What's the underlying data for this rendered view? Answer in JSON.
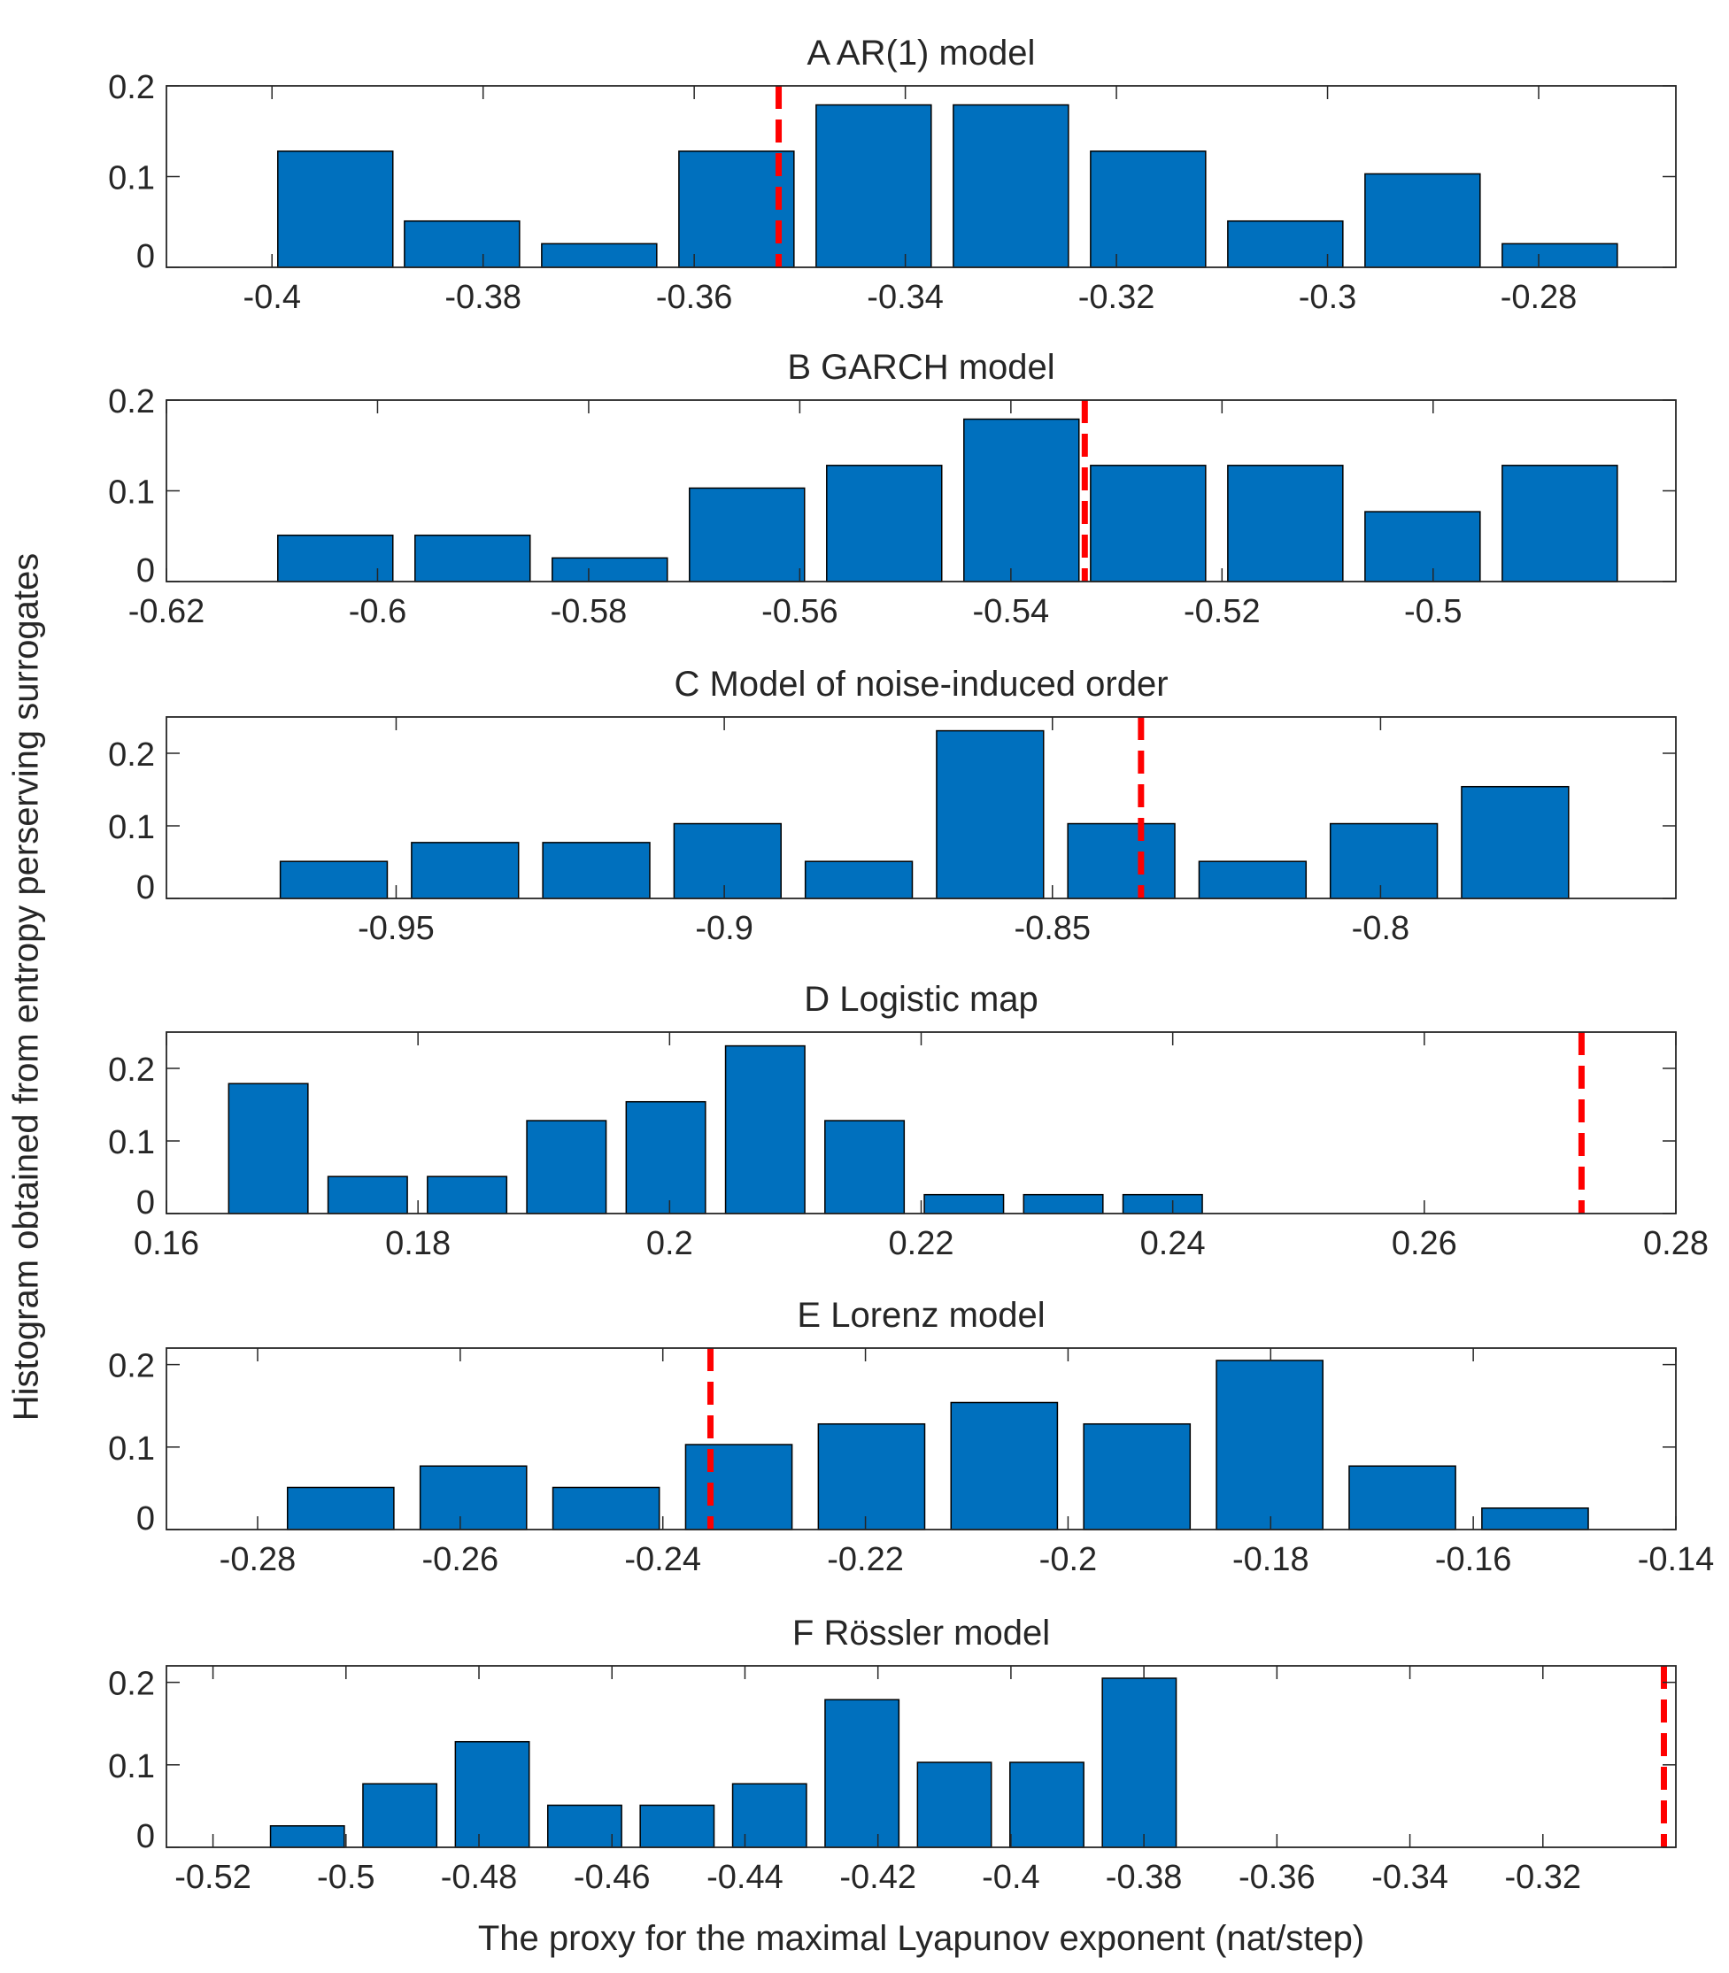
{
  "figure": {
    "ylabel": "Histogram obtained from entropy perserving surrogates",
    "xlabel": "The proxy for the maximal Lyapunov exponent (nat/step)"
  },
  "colors": {
    "bar": "#0070BE",
    "edge": "#000000",
    "line": "#FF0000",
    "text": "#262626",
    "axis": "#262626"
  },
  "chart_data": [
    {
      "type": "bar",
      "title": "A AR(1) model",
      "xlim": [
        -0.41,
        -0.267
      ],
      "ylim": [
        0,
        0.2
      ],
      "yticks": [
        0,
        0.1,
        0.2
      ],
      "ytick_labels": [
        "0",
        "0.1",
        "0.2"
      ],
      "xticks": [
        -0.4,
        -0.38,
        -0.36,
        -0.34,
        -0.32,
        -0.3,
        -0.28
      ],
      "xtick_labels": [
        "-0.4",
        "-0.38",
        "-0.36",
        "-0.34",
        "-0.32",
        "-0.3",
        "-0.28"
      ],
      "bar_width": 0.0109,
      "bars": [
        {
          "x": -0.394,
          "value": 0.128
        },
        {
          "x": -0.382,
          "value": 0.051
        },
        {
          "x": -0.369,
          "value": 0.026
        },
        {
          "x": -0.356,
          "value": 0.128
        },
        {
          "x": -0.343,
          "value": 0.179
        },
        {
          "x": -0.33,
          "value": 0.179
        },
        {
          "x": -0.317,
          "value": 0.128
        },
        {
          "x": -0.304,
          "value": 0.051
        },
        {
          "x": -0.291,
          "value": 0.103
        },
        {
          "x": -0.278,
          "value": 0.026
        }
      ],
      "reference_x": -0.352
    },
    {
      "type": "bar",
      "title": "B GARCH model",
      "xlim": [
        -0.62,
        -0.477
      ],
      "ylim": [
        0,
        0.2
      ],
      "yticks": [
        0,
        0.1,
        0.2
      ],
      "ytick_labels": [
        "0",
        "0.1",
        "0.2"
      ],
      "xticks": [
        -0.62,
        -0.6,
        -0.58,
        -0.56,
        -0.54,
        -0.52,
        -0.5
      ],
      "xtick_labels": [
        "-0.62",
        "-0.6",
        "-0.58",
        "-0.56",
        "-0.54",
        "-0.52",
        "-0.5"
      ],
      "bar_width": 0.0109,
      "bars": [
        {
          "x": -0.604,
          "value": 0.051
        },
        {
          "x": -0.591,
          "value": 0.051
        },
        {
          "x": -0.578,
          "value": 0.026
        },
        {
          "x": -0.565,
          "value": 0.103
        },
        {
          "x": -0.552,
          "value": 0.128
        },
        {
          "x": -0.539,
          "value": 0.179
        },
        {
          "x": -0.527,
          "value": 0.128
        },
        {
          "x": -0.514,
          "value": 0.128
        },
        {
          "x": -0.501,
          "value": 0.077
        },
        {
          "x": -0.488,
          "value": 0.128
        }
      ],
      "reference_x": -0.533
    },
    {
      "type": "bar",
      "title": "C Model of noise-induced order",
      "xlim": [
        -0.985,
        -0.755
      ],
      "ylim": [
        0,
        0.25
      ],
      "yticks": [
        0,
        0.1,
        0.2
      ],
      "ytick_labels": [
        "0",
        "0.1",
        "0.2"
      ],
      "xticks": [
        -0.95,
        -0.9,
        -0.85,
        -0.8
      ],
      "xtick_labels": [
        "-0.95",
        "-0.9",
        "-0.85",
        "-0.8"
      ],
      "bar_width": 0.0163,
      "bars": [
        {
          "x": -0.9595,
          "value": 0.051
        },
        {
          "x": -0.9395,
          "value": 0.077
        },
        {
          "x": -0.9195,
          "value": 0.077
        },
        {
          "x": -0.8995,
          "value": 0.103
        },
        {
          "x": -0.8795,
          "value": 0.051
        },
        {
          "x": -0.8595,
          "value": 0.231
        },
        {
          "x": -0.8395,
          "value": 0.103
        },
        {
          "x": -0.8195,
          "value": 0.051
        },
        {
          "x": -0.7995,
          "value": 0.103
        },
        {
          "x": -0.7795,
          "value": 0.154
        }
      ],
      "reference_x": -0.8365
    },
    {
      "type": "bar",
      "title": "D Logistic map",
      "xlim": [
        0.16,
        0.28
      ],
      "ylim": [
        0,
        0.25
      ],
      "yticks": [
        0,
        0.1,
        0.2
      ],
      "ytick_labels": [
        "0",
        "0.1",
        "0.2"
      ],
      "xticks": [
        0.16,
        0.18,
        0.2,
        0.22,
        0.24,
        0.26,
        0.28
      ],
      "xtick_labels": [
        "0.16",
        "0.18",
        "0.2",
        "0.22",
        "0.24",
        "0.26",
        "0.28"
      ],
      "bar_width": 0.0063,
      "bars": [
        {
          "x": 0.1681,
          "value": 0.179
        },
        {
          "x": 0.176,
          "value": 0.051
        },
        {
          "x": 0.1839,
          "value": 0.051
        },
        {
          "x": 0.1918,
          "value": 0.128
        },
        {
          "x": 0.1997,
          "value": 0.154
        },
        {
          "x": 0.2076,
          "value": 0.231
        },
        {
          "x": 0.2155,
          "value": 0.128
        },
        {
          "x": 0.2234,
          "value": 0.026
        },
        {
          "x": 0.2313,
          "value": 0.026
        },
        {
          "x": 0.2392,
          "value": 0.026
        }
      ],
      "reference_x": 0.2725
    },
    {
      "type": "bar",
      "title": "E Lorenz model",
      "xlim": [
        -0.289,
        -0.14
      ],
      "ylim": [
        0,
        0.22
      ],
      "yticks": [
        0,
        0.1,
        0.2
      ],
      "ytick_labels": [
        "0",
        "0.1",
        "0.2"
      ],
      "xticks": [
        -0.28,
        -0.26,
        -0.24,
        -0.22,
        -0.2,
        -0.18,
        -0.16,
        -0.14
      ],
      "xtick_labels": [
        "-0.28",
        "-0.26",
        "-0.24",
        "-0.22",
        "-0.2",
        "-0.18",
        "-0.16",
        "-0.14"
      ],
      "bar_width": 0.0105,
      "bars": [
        {
          "x": -0.2718,
          "value": 0.051
        },
        {
          "x": -0.2587,
          "value": 0.077
        },
        {
          "x": -0.2456,
          "value": 0.051
        },
        {
          "x": -0.2325,
          "value": 0.103
        },
        {
          "x": -0.2194,
          "value": 0.128
        },
        {
          "x": -0.2063,
          "value": 0.154
        },
        {
          "x": -0.1932,
          "value": 0.128
        },
        {
          "x": -0.1801,
          "value": 0.205
        },
        {
          "x": -0.167,
          "value": 0.077
        },
        {
          "x": -0.1539,
          "value": 0.026
        }
      ],
      "reference_x": -0.2353
    },
    {
      "type": "bar",
      "title": "F Rössler model",
      "xlim": [
        -0.527,
        -0.3
      ],
      "ylim": [
        0,
        0.22
      ],
      "yticks": [
        0,
        0.1,
        0.2
      ],
      "ytick_labels": [
        "0",
        "0.1",
        "0.2"
      ],
      "xticks": [
        -0.52,
        -0.5,
        -0.48,
        -0.46,
        -0.44,
        -0.42,
        -0.4,
        -0.38,
        -0.36,
        -0.34,
        -0.32
      ],
      "xtick_labels": [
        "-0.52",
        "-0.5",
        "-0.48",
        "-0.46",
        "-0.44",
        "-0.42",
        "-0.4",
        "-0.38",
        "-0.36",
        "-0.34",
        "-0.32"
      ],
      "bar_width": 0.0111,
      "bars": [
        {
          "x": -0.5058,
          "value": 0.026
        },
        {
          "x": -0.4919,
          "value": 0.077
        },
        {
          "x": -0.478,
          "value": 0.128
        },
        {
          "x": -0.4641,
          "value": 0.051
        },
        {
          "x": -0.4502,
          "value": 0.051
        },
        {
          "x": -0.4363,
          "value": 0.077
        },
        {
          "x": -0.4224,
          "value": 0.179
        },
        {
          "x": -0.4085,
          "value": 0.103
        },
        {
          "x": -0.3946,
          "value": 0.103
        },
        {
          "x": -0.3807,
          "value": 0.205
        }
      ],
      "reference_x": -0.3018
    }
  ]
}
